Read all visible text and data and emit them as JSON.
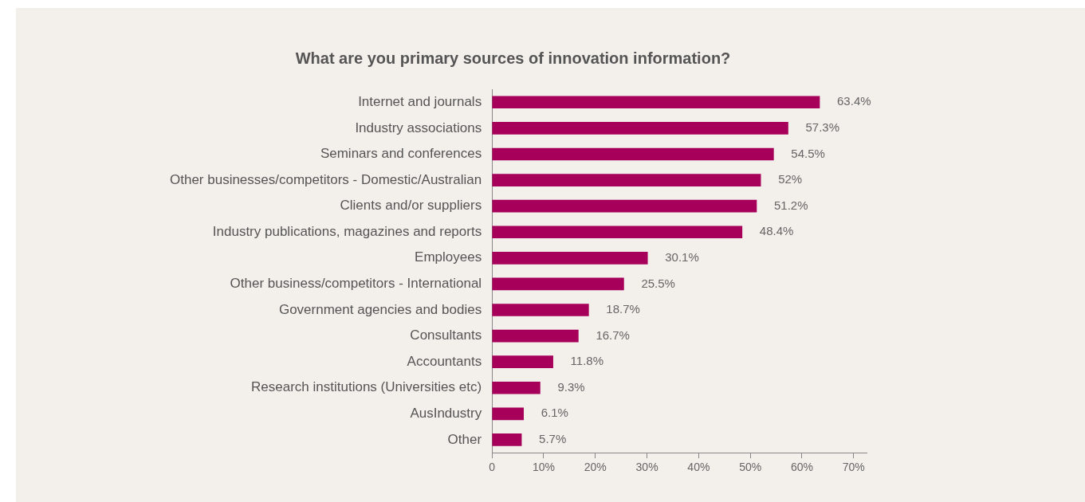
{
  "chart_data": {
    "type": "bar",
    "orientation": "horizontal",
    "title": "What are you primary sources of innovation information?",
    "categories": [
      "Internet and journals",
      "Industry associations",
      "Seminars and conferences",
      "Other businesses/competitors - Domestic/Australian",
      "Clients and/or suppliers",
      "Industry publications, magazines and reports",
      "Employees",
      "Other business/competitors - International",
      "Government agencies and bodies",
      "Consultants",
      "Accountants",
      "Research institutions (Universities etc)",
      "AusIndustry",
      "Other"
    ],
    "values": [
      63.4,
      57.3,
      54.5,
      52,
      51.2,
      48.4,
      30.1,
      25.5,
      18.7,
      16.7,
      11.8,
      9.3,
      6.1,
      5.7
    ],
    "value_labels": [
      "63.4%",
      "57.3%",
      "54.5%",
      "52%",
      "51.2%",
      "48.4%",
      "30.1%",
      "25.5%",
      "18.7%",
      "16.7%",
      "11.8%",
      "9.3%",
      "6.1%",
      "5.7%"
    ],
    "color": "#a6005a",
    "xlim": [
      0,
      72.5
    ],
    "xticks": [
      0,
      {
        "value": 10,
        "label": "10%"
      },
      {
        "value": 20,
        "label": "20%"
      },
      {
        "value": 30,
        "label": "30%"
      },
      {
        "value": 40,
        "label": "40%"
      },
      {
        "value": 50,
        "label": "50%"
      },
      {
        "value": 60,
        "label": "60%"
      },
      {
        "value": 70,
        "label": "70%"
      }
    ],
    "grid": false,
    "legend": false
  }
}
